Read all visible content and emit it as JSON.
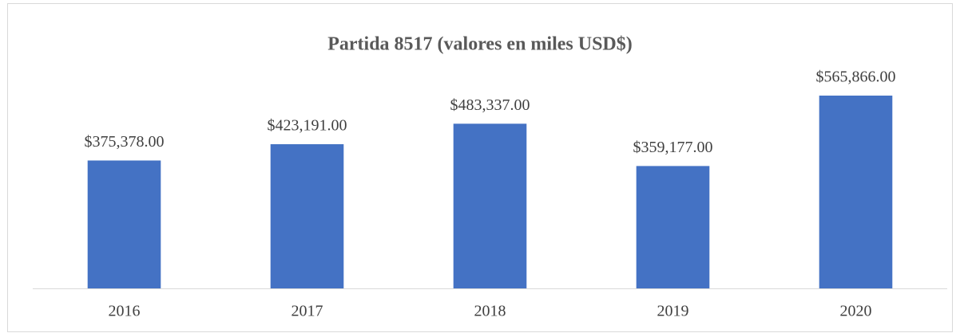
{
  "chart_data": {
    "type": "bar",
    "title": "Partida 8517 (valores en miles USD$)",
    "categories": [
      "2016",
      "2017",
      "2018",
      "2019",
      "2020"
    ],
    "values": [
      375378,
      423191,
      483337,
      359177,
      565866
    ],
    "value_labels": [
      "$375,378.00",
      "$423,191.00",
      "$483,337.00",
      "$359,177.00",
      "$565,866.00"
    ],
    "color": "#4472c4"
  }
}
